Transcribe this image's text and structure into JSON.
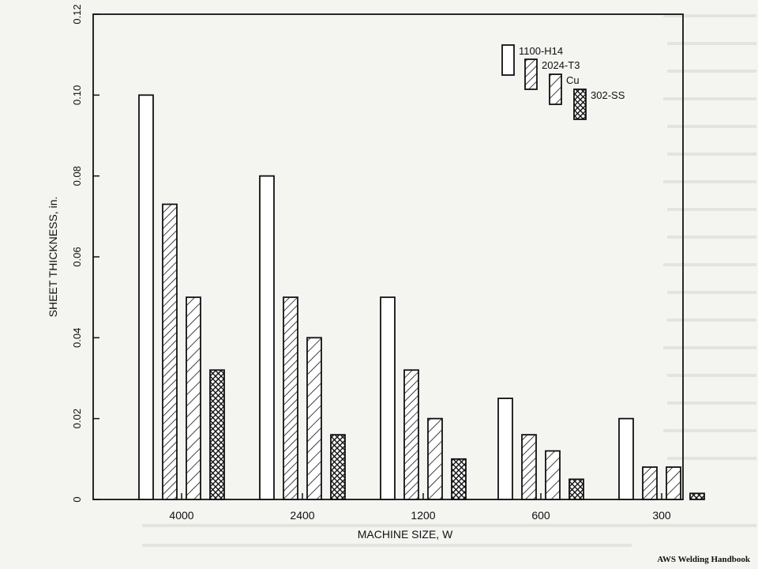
{
  "chart_data": {
    "type": "bar",
    "xlabel": "MACHINE SIZE, W",
    "ylabel": "SHEET THICKNESS, in.",
    "ylim": [
      0,
      0.12
    ],
    "yticks": [
      {
        "value": 0,
        "label": "0"
      },
      {
        "value": 0.02,
        "label": "0.02"
      },
      {
        "value": 0.04,
        "label": "0.04"
      },
      {
        "value": 0.06,
        "label": "0.06"
      },
      {
        "value": 0.08,
        "label": "0.08"
      },
      {
        "value": 0.1,
        "label": "0.10"
      },
      {
        "value": 0.12,
        "label": "0.12"
      }
    ],
    "categories": [
      "4000",
      "2400",
      "1200",
      "600",
      "300"
    ],
    "series": [
      {
        "name": "1100-H14",
        "pattern": "blank",
        "values": [
          0.1,
          0.08,
          0.05,
          0.025,
          0.02
        ]
      },
      {
        "name": "2024-T3",
        "pattern": "hatch-dense",
        "values": [
          0.073,
          0.05,
          0.032,
          0.016,
          0.008
        ]
      },
      {
        "name": "Cu",
        "pattern": "hatch-wide",
        "values": [
          0.05,
          0.04,
          0.02,
          0.012,
          0.008
        ]
      },
      {
        "name": "302-SS",
        "pattern": "crosshatch",
        "values": [
          0.032,
          0.016,
          0.01,
          0.005,
          0.0015
        ]
      }
    ],
    "legend_position": "top-right",
    "grid": false
  },
  "footer": {
    "text": "AWS Welding Handbook"
  },
  "colors": {
    "ink": "#111111",
    "paper": "#f4f4f1",
    "bar_fill": "#ffffff"
  }
}
